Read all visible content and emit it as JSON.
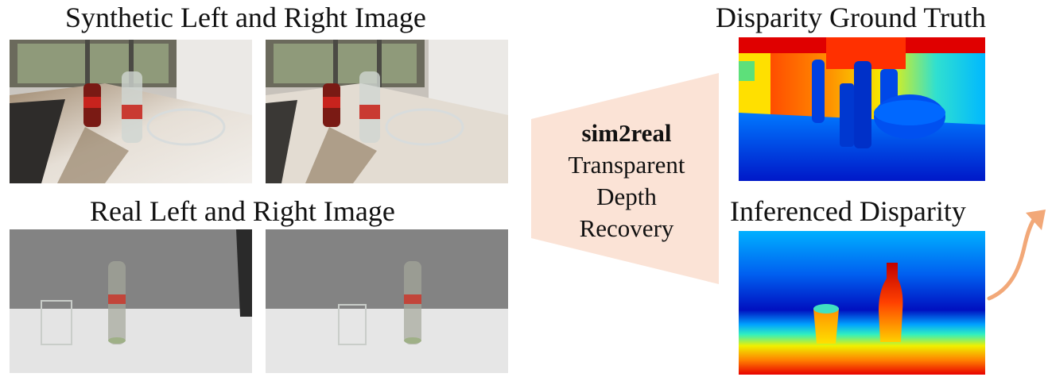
{
  "titles": {
    "synthetic": "Synthetic Left and Right Image",
    "real": "Real Left and Right Image",
    "gt": "Disparity Ground Truth",
    "inferenced": "Inferenced Disparity"
  },
  "center": {
    "line1": "sim2real",
    "line2": "Transparent",
    "line3": "Depth",
    "line4": "Recovery"
  },
  "colors": {
    "trapezoid": "#fbe3d6",
    "arrow": "#f2a878"
  }
}
